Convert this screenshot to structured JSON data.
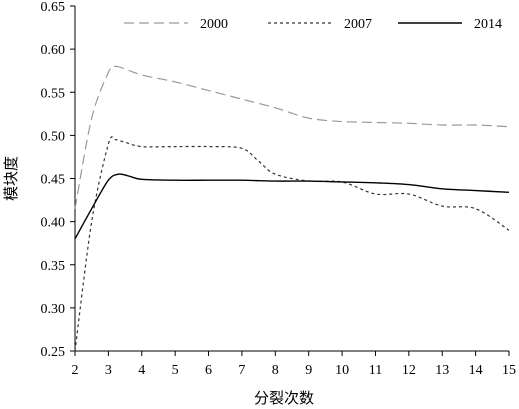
{
  "chart_data": {
    "type": "line",
    "xlabel": "分裂次数",
    "ylabel": "模块度",
    "xlim": [
      2,
      15
    ],
    "ylim": [
      0.25,
      0.65
    ],
    "x_ticks": [
      2,
      3,
      4,
      5,
      6,
      7,
      8,
      9,
      10,
      11,
      12,
      13,
      14,
      15
    ],
    "y_ticks": [
      "0.25",
      "0.30",
      "0.35",
      "0.40",
      "0.45",
      "0.50",
      "0.55",
      "0.60",
      "0.65"
    ],
    "legend_position": "top",
    "grid": false,
    "series": [
      {
        "name": "2000",
        "color": "#999999",
        "dash": "long-dash",
        "x": [
          2,
          2.5,
          3,
          3.2,
          3.5,
          4,
          5,
          6,
          7,
          8,
          9,
          10,
          11,
          12,
          13,
          14,
          15
        ],
        "y": [
          0.415,
          0.52,
          0.573,
          0.58,
          0.577,
          0.57,
          0.562,
          0.552,
          0.542,
          0.532,
          0.52,
          0.516,
          0.515,
          0.514,
          0.512,
          0.512,
          0.51
        ]
      },
      {
        "name": "2007",
        "color": "#333333",
        "dash": "short-dash",
        "x": [
          2,
          2.5,
          3,
          3.2,
          3.5,
          4,
          5,
          6,
          7,
          7.5,
          8,
          9,
          10,
          11,
          12,
          13,
          14,
          15
        ],
        "y": [
          0.25,
          0.4,
          0.49,
          0.495,
          0.492,
          0.487,
          0.487,
          0.487,
          0.485,
          0.47,
          0.455,
          0.447,
          0.446,
          0.432,
          0.432,
          0.418,
          0.415,
          0.39
        ]
      },
      {
        "name": "2014",
        "color": "#000000",
        "dash": "solid",
        "x": [
          2,
          2.5,
          3,
          3.3,
          3.6,
          4,
          5,
          6,
          7,
          8,
          9,
          10,
          11,
          12,
          13,
          14,
          15
        ],
        "y": [
          0.38,
          0.415,
          0.448,
          0.455,
          0.453,
          0.449,
          0.448,
          0.448,
          0.448,
          0.447,
          0.447,
          0.446,
          0.445,
          0.443,
          0.438,
          0.436,
          0.434
        ]
      }
    ]
  }
}
